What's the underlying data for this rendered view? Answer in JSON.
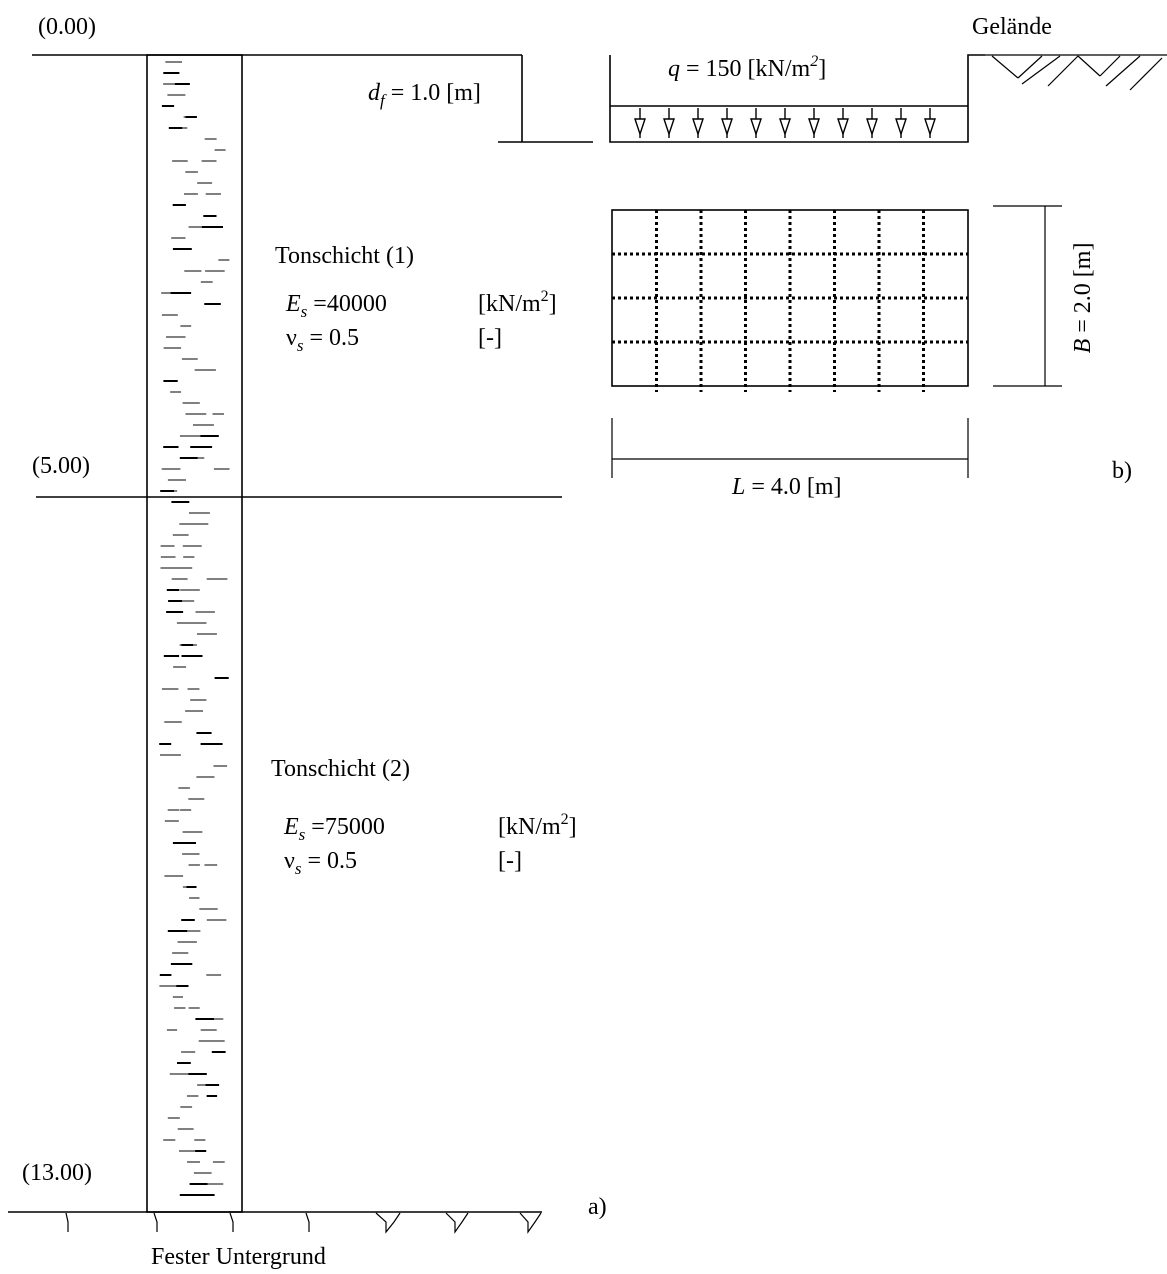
{
  "elevations": {
    "top": "(0.00)",
    "mid": "(5.00)",
    "bottom": "(13.00)"
  },
  "ground_label": "Gelände",
  "foundation_depth": {
    "symbol": "d",
    "subscript": "f",
    "text": " = 1.0 [m]"
  },
  "load": {
    "symbol": "q",
    "text": " = 150 [kN/m",
    "sup": "2",
    "close": "]",
    "arrow_count": 11
  },
  "layer1": {
    "title": "Tonschicht (1)",
    "es_symbol": "E",
    "es_sub": "s",
    "es_value": " =40000",
    "es_unit": "[kN/m",
    "es_unit_sup": "2",
    "es_unit_close": "]",
    "nu_symbol": "ν",
    "nu_sub": "s",
    "nu_value": " = 0.5",
    "nu_unit": "[-]"
  },
  "layer2": {
    "title": "Tonschicht (2)",
    "es_symbol": "E",
    "es_sub": "s",
    "es_value": " =75000",
    "es_unit": "[kN/m",
    "es_unit_sup": "2",
    "es_unit_close": "]",
    "nu_symbol": "ν",
    "nu_sub": "s",
    "nu_value": " = 0.5",
    "nu_unit": "[-]"
  },
  "plan": {
    "width_symbol": "B",
    "width_text": " = 2.0 [m]",
    "length_symbol": "L",
    "length_text": " = 4.0 [m]",
    "grid_columns": 8,
    "grid_rows": 4
  },
  "subfigure_a": "a)",
  "subfigure_b": "b)",
  "base_label": "Fester Untergrund"
}
